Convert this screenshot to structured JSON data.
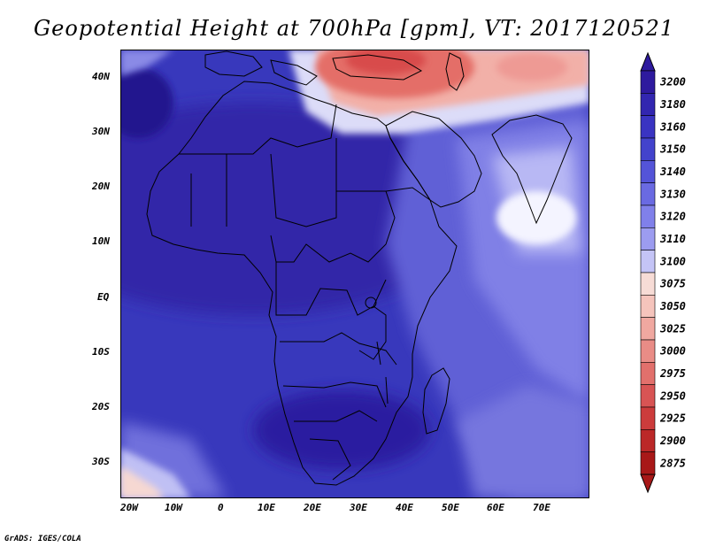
{
  "title": "Geopotential Height at 700hPa [gpm], VT: 2017120521",
  "axes": {
    "lat_ticks": [
      "40N",
      "30N",
      "20N",
      "10N",
      "EQ",
      "10S",
      "20S",
      "30S"
    ],
    "lon_ticks": [
      "20W",
      "10W",
      "0",
      "10E",
      "20E",
      "30E",
      "40E",
      "50E",
      "60E",
      "70E"
    ]
  },
  "legend": {
    "levels": [
      "3200",
      "3180",
      "3160",
      "3150",
      "3140",
      "3130",
      "3120",
      "3110",
      "3100",
      "3075",
      "3050",
      "3025",
      "3000",
      "2975",
      "2950",
      "2925",
      "2900",
      "2875"
    ],
    "colors": [
      "#2e1a9e",
      "#3226b0",
      "#3a34c2",
      "#4343cc",
      "#5454d8",
      "#6a6ae2",
      "#8080ea",
      "#9c9cf0",
      "#c4c4f6",
      "#f7dcd6",
      "#f5c4bc",
      "#f0a8a0",
      "#e98c86",
      "#e2706c",
      "#d85454",
      "#cc3c3c",
      "#bb2828",
      "#a81818"
    ]
  },
  "credit": "GrADS: IGES/COLA"
}
